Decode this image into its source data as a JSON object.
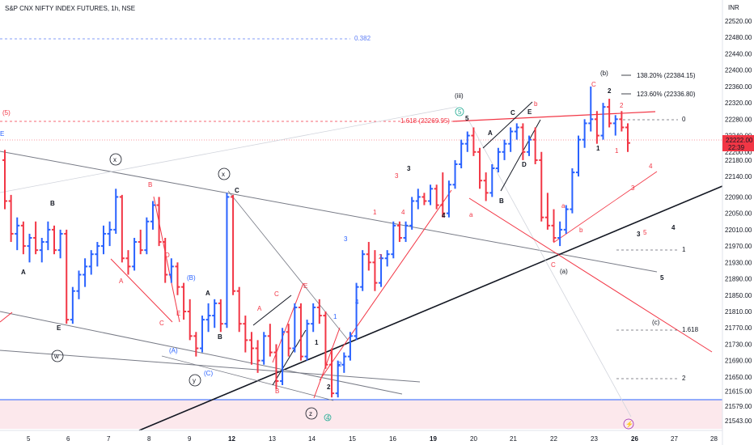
{
  "title": "S&P CNX NIFTY INDEX FUTURES, 1h, NSE",
  "currency": "INR",
  "price_axis": {
    "ticks": [
      "22520.00",
      "22480.00",
      "22440.00",
      "22400.00",
      "22360.00",
      "22320.00",
      "22280.00",
      "22240.00",
      "22200.00",
      "22180.00",
      "22140.00",
      "22090.00",
      "22050.00",
      "22010.00",
      "21970.00",
      "21930.00",
      "21890.00",
      "21850.00",
      "21810.00",
      "21770.00",
      "21730.00",
      "21690.00",
      "21650.00",
      "21615.00",
      "21579.00",
      "21543.00"
    ],
    "current_price": "22222.00",
    "current_sub": "22:39"
  },
  "time_axis": {
    "ticks": [
      "5",
      "6",
      "7",
      "8",
      "9",
      "12",
      "13",
      "14",
      "15",
      "16",
      "19",
      "20",
      "21",
      "22",
      "23",
      "26",
      "27",
      "28"
    ]
  },
  "colors": {
    "up": "#2962ff",
    "down": "#f23645",
    "line": "#131722",
    "grey_line": "#787b86",
    "fib_blue": "#5b7cf5",
    "fib_red": "#f23645",
    "zone": "#fce8ec",
    "zone_line": "#2962ff",
    "green": "#22ab94",
    "purple": "#9c27b0"
  },
  "fib_labels": {
    "f382": "0.382",
    "f1618": "1.618 (22269.95)",
    "wave5_label": "(5)",
    "f0": "0",
    "f1": "1",
    "f1618b": "1.618",
    "f2": "2",
    "fib1382": "138.20% (22384.15)",
    "fib1236": "123.60% (22336.80)"
  },
  "annotations": {
    "x1": "x",
    "x2": "x",
    "w": "w",
    "y": "y",
    "z": "z",
    "iii": "(iii)",
    "b_big": "(b)",
    "a_big": "(a)",
    "c_big": "(c)",
    "A1": "A",
    "B1": "B",
    "E1": "E",
    "E2": "E",
    "B_red": "B",
    "A_red": "A",
    "C_red": "C",
    "D_red": "D",
    "E_red": "E",
    "A_paren": "(A)",
    "B_paren": "(B)",
    "C_paren": "(C)",
    "A2": "A",
    "B2": "B",
    "C2": "C",
    "A_r2": "A",
    "C_r2": "C",
    "E_r2": "E",
    "B_r2": "B",
    "one_a": "1",
    "two_a": "2",
    "one_b": "1",
    "two_b": "2",
    "three_b": "3",
    "four_b": "4",
    "one_r": "1",
    "two_r": "2",
    "three_r": "3",
    "four_r": "4",
    "three_k": "3",
    "four_k": "4",
    "five": "5",
    "A3": "A",
    "C3": "C",
    "E3": "E",
    "B3": "B",
    "D3": "D",
    "b_red": "b",
    "a_red": "a",
    "a_red2": "a",
    "b_red2": "b",
    "c_red": "c",
    "C4": "C",
    "two_c": "2",
    "one_c": "1",
    "two_d": "2",
    "one_d": "1",
    "five_r": "5",
    "four_r2": "4",
    "three_r2": "3",
    "three_k2": "3",
    "four_k2": "4",
    "five_k2": "5",
    "circ5": "5",
    "circ4": "4",
    "circ_flash": "⚡"
  },
  "chart_data": {
    "type": "ohlc",
    "title": "S&P CNX NIFTY INDEX FUTURES, 1h, NSE",
    "ylim": [
      21525,
      22555
    ],
    "x_categories": [
      "5",
      "6",
      "7",
      "8",
      "9",
      "12",
      "13",
      "14",
      "15",
      "16",
      "19",
      "20",
      "21",
      "22",
      "23",
      "26",
      "27",
      "28"
    ],
    "last_price": 22222.0,
    "fib_levels": [
      {
        "label": "138.20%",
        "value": 22384.15
      },
      {
        "label": "123.60%",
        "value": 22336.8
      },
      {
        "label": "1.618",
        "value": 22269.95
      }
    ],
    "bars": [
      {
        "o": 22180,
        "h": 22205,
        "l": 22060,
        "c": 22080
      },
      {
        "o": 22080,
        "h": 22095,
        "l": 21980,
        "c": 22000
      },
      {
        "o": 22000,
        "h": 22040,
        "l": 21960,
        "c": 22020
      },
      {
        "o": 22020,
        "h": 22030,
        "l": 21950,
        "c": 21970
      },
      {
        "o": 21970,
        "h": 22000,
        "l": 21930,
        "c": 21990
      },
      {
        "o": 21990,
        "h": 22030,
        "l": 21950,
        "c": 21960
      },
      {
        "o": 21960,
        "h": 21990,
        "l": 21930,
        "c": 21980
      },
      {
        "o": 21980,
        "h": 22030,
        "l": 21960,
        "c": 22010
      },
      {
        "o": 22010,
        "h": 22020,
        "l": 21950,
        "c": 21960
      },
      {
        "o": 21960,
        "h": 22010,
        "l": 21940,
        "c": 22000
      },
      {
        "o": 22000,
        "h": 22010,
        "l": 21780,
        "c": 21790
      },
      {
        "o": 21790,
        "h": 21870,
        "l": 21780,
        "c": 21860
      },
      {
        "o": 21860,
        "h": 21910,
        "l": 21840,
        "c": 21900
      },
      {
        "o": 21900,
        "h": 21940,
        "l": 21870,
        "c": 21920
      },
      {
        "o": 21920,
        "h": 21960,
        "l": 21900,
        "c": 21950
      },
      {
        "o": 21950,
        "h": 21980,
        "l": 21920,
        "c": 21970
      },
      {
        "o": 21970,
        "h": 22020,
        "l": 21950,
        "c": 22000
      },
      {
        "o": 22000,
        "h": 22030,
        "l": 21970,
        "c": 22010
      },
      {
        "o": 22010,
        "h": 22110,
        "l": 22000,
        "c": 22090
      },
      {
        "o": 22090,
        "h": 22095,
        "l": 21930,
        "c": 21940
      },
      {
        "o": 21940,
        "h": 21960,
        "l": 21900,
        "c": 21920
      },
      {
        "o": 21920,
        "h": 21990,
        "l": 21910,
        "c": 21980
      },
      {
        "o": 21980,
        "h": 22010,
        "l": 21950,
        "c": 21960
      },
      {
        "o": 21960,
        "h": 22040,
        "l": 21950,
        "c": 22030
      },
      {
        "o": 22030,
        "h": 22080,
        "l": 22010,
        "c": 22070
      },
      {
        "o": 22070,
        "h": 22090,
        "l": 21970,
        "c": 21980
      },
      {
        "o": 21980,
        "h": 21990,
        "l": 21880,
        "c": 21900
      },
      {
        "o": 21900,
        "h": 21940,
        "l": 21880,
        "c": 21920
      },
      {
        "o": 21920,
        "h": 21930,
        "l": 21850,
        "c": 21870
      },
      {
        "o": 21870,
        "h": 21880,
        "l": 21790,
        "c": 21810
      },
      {
        "o": 21810,
        "h": 21840,
        "l": 21740,
        "c": 21750
      },
      {
        "o": 21750,
        "h": 21760,
        "l": 21700,
        "c": 21720
      },
      {
        "o": 21720,
        "h": 21800,
        "l": 21710,
        "c": 21790
      },
      {
        "o": 21790,
        "h": 21830,
        "l": 21760,
        "c": 21800
      },
      {
        "o": 21800,
        "h": 21840,
        "l": 21770,
        "c": 21830
      },
      {
        "o": 21830,
        "h": 21840,
        "l": 21760,
        "c": 21780
      },
      {
        "o": 21780,
        "h": 22100,
        "l": 21770,
        "c": 22090
      },
      {
        "o": 22090,
        "h": 22095,
        "l": 21850,
        "c": 21860
      },
      {
        "o": 21860,
        "h": 21870,
        "l": 21760,
        "c": 21780
      },
      {
        "o": 21780,
        "h": 21800,
        "l": 21710,
        "c": 21740
      },
      {
        "o": 21740,
        "h": 21760,
        "l": 21680,
        "c": 21720
      },
      {
        "o": 21720,
        "h": 21740,
        "l": 21660,
        "c": 21690
      },
      {
        "o": 21690,
        "h": 21760,
        "l": 21680,
        "c": 21750
      },
      {
        "o": 21750,
        "h": 21780,
        "l": 21700,
        "c": 21710
      },
      {
        "o": 21710,
        "h": 21730,
        "l": 21620,
        "c": 21640
      },
      {
        "o": 21640,
        "h": 21770,
        "l": 21630,
        "c": 21760
      },
      {
        "o": 21760,
        "h": 21780,
        "l": 21700,
        "c": 21720
      },
      {
        "o": 21720,
        "h": 21830,
        "l": 21710,
        "c": 21820
      },
      {
        "o": 21820,
        "h": 21830,
        "l": 21690,
        "c": 21700
      },
      {
        "o": 21700,
        "h": 21790,
        "l": 21690,
        "c": 21780
      },
      {
        "o": 21780,
        "h": 21830,
        "l": 21760,
        "c": 21820
      },
      {
        "o": 21820,
        "h": 21840,
        "l": 21780,
        "c": 21800
      },
      {
        "o": 21800,
        "h": 21810,
        "l": 21670,
        "c": 21680
      },
      {
        "o": 21680,
        "h": 21720,
        "l": 21600,
        "c": 21610
      },
      {
        "o": 21610,
        "h": 21690,
        "l": 21600,
        "c": 21680
      },
      {
        "o": 21680,
        "h": 21710,
        "l": 21660,
        "c": 21700
      },
      {
        "o": 21700,
        "h": 21760,
        "l": 21690,
        "c": 21750
      },
      {
        "o": 21750,
        "h": 21880,
        "l": 21740,
        "c": 21870
      },
      {
        "o": 21870,
        "h": 21960,
        "l": 21860,
        "c": 21950
      },
      {
        "o": 21950,
        "h": 21980,
        "l": 21910,
        "c": 21930
      },
      {
        "o": 21930,
        "h": 21960,
        "l": 21860,
        "c": 21880
      },
      {
        "o": 21880,
        "h": 21950,
        "l": 21870,
        "c": 21940
      },
      {
        "o": 21940,
        "h": 21960,
        "l": 21920,
        "c": 21950
      },
      {
        "o": 21950,
        "h": 22030,
        "l": 21940,
        "c": 22020
      },
      {
        "o": 22020,
        "h": 22030,
        "l": 21980,
        "c": 21990
      },
      {
        "o": 21990,
        "h": 22030,
        "l": 21980,
        "c": 22020
      },
      {
        "o": 22020,
        "h": 22090,
        "l": 22010,
        "c": 22080
      },
      {
        "o": 22080,
        "h": 22110,
        "l": 22060,
        "c": 22090
      },
      {
        "o": 22090,
        "h": 22100,
        "l": 22070,
        "c": 22080
      },
      {
        "o": 22080,
        "h": 22120,
        "l": 22070,
        "c": 22110
      },
      {
        "o": 22110,
        "h": 22120,
        "l": 22060,
        "c": 22070
      },
      {
        "o": 22070,
        "h": 22150,
        "l": 22040,
        "c": 22050
      },
      {
        "o": 22050,
        "h": 22130,
        "l": 22040,
        "c": 22120
      },
      {
        "o": 22120,
        "h": 22180,
        "l": 22110,
        "c": 22170
      },
      {
        "o": 22170,
        "h": 22230,
        "l": 22160,
        "c": 22220
      },
      {
        "o": 22220,
        "h": 22250,
        "l": 22200,
        "c": 22240
      },
      {
        "o": 22240,
        "h": 22260,
        "l": 22190,
        "c": 22200
      },
      {
        "o": 22200,
        "h": 22210,
        "l": 22110,
        "c": 22130
      },
      {
        "o": 22130,
        "h": 22150,
        "l": 22080,
        "c": 22100
      },
      {
        "o": 22100,
        "h": 22170,
        "l": 22090,
        "c": 22160
      },
      {
        "o": 22160,
        "h": 22210,
        "l": 22150,
        "c": 22200
      },
      {
        "o": 22200,
        "h": 22230,
        "l": 22180,
        "c": 22220
      },
      {
        "o": 22220,
        "h": 22260,
        "l": 22200,
        "c": 22250
      },
      {
        "o": 22250,
        "h": 22270,
        "l": 22230,
        "c": 22260
      },
      {
        "o": 22260,
        "h": 22270,
        "l": 22180,
        "c": 22200
      },
      {
        "o": 22200,
        "h": 22240,
        "l": 22190,
        "c": 22230
      },
      {
        "o": 22230,
        "h": 22260,
        "l": 22170,
        "c": 22180
      },
      {
        "o": 22180,
        "h": 22200,
        "l": 22030,
        "c": 22040
      },
      {
        "o": 22040,
        "h": 22100,
        "l": 22010,
        "c": 22020
      },
      {
        "o": 22020,
        "h": 22060,
        "l": 21980,
        "c": 21990
      },
      {
        "o": 21990,
        "h": 22030,
        "l": 21970,
        "c": 22010
      },
      {
        "o": 22010,
        "h": 22070,
        "l": 22000,
        "c": 22060
      },
      {
        "o": 22060,
        "h": 22160,
        "l": 22050,
        "c": 22150
      },
      {
        "o": 22150,
        "h": 22240,
        "l": 22140,
        "c": 22230
      },
      {
        "o": 22230,
        "h": 22280,
        "l": 22210,
        "c": 22270
      },
      {
        "o": 22270,
        "h": 22360,
        "l": 22250,
        "c": 22280
      },
      {
        "o": 22280,
        "h": 22300,
        "l": 22220,
        "c": 22240
      },
      {
        "o": 22240,
        "h": 22320,
        "l": 22230,
        "c": 22310
      },
      {
        "o": 22310,
        "h": 22330,
        "l": 22260,
        "c": 22270
      },
      {
        "o": 22270,
        "h": 22290,
        "l": 22240,
        "c": 22280
      },
      {
        "o": 22280,
        "h": 22300,
        "l": 22250,
        "c": 22260
      },
      {
        "o": 22260,
        "h": 22270,
        "l": 22200,
        "c": 22222
      }
    ]
  }
}
